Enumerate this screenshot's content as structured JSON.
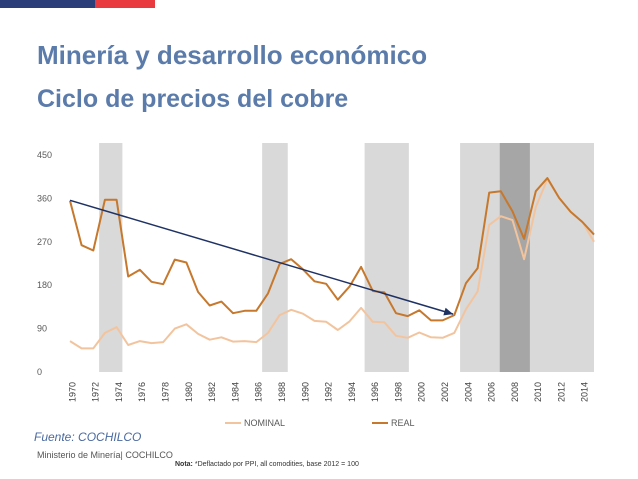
{
  "header": {
    "title": "Minería y desarrollo económico",
    "subtitle": "Ciclo de precios del cobre"
  },
  "footer": {
    "source": "Fuente: COCHILCO",
    "org": "Ministerio de Minería| COCHILCO",
    "note_label": "Nota:",
    "note_text": "*Deflactado por PPI, all comodities, base 2012 = 100"
  },
  "colors": {
    "flag_blue": "#2a3f7a",
    "flag_red": "#e83a3f",
    "nominal": "#f2c49e",
    "real": "#c6782d",
    "trend_arrow": "#1f3264",
    "band": "#d9d9d9",
    "band_dark": "#a6a6a6"
  },
  "chart_data": {
    "type": "line",
    "x": [
      1970,
      1971,
      1972,
      1973,
      1974,
      1975,
      1976,
      1977,
      1978,
      1979,
      1980,
      1981,
      1982,
      1983,
      1984,
      1985,
      1986,
      1987,
      1988,
      1989,
      1990,
      1991,
      1992,
      1993,
      1994,
      1995,
      1996,
      1997,
      1998,
      1999,
      2000,
      2001,
      2002,
      2003,
      2004,
      2005,
      2006,
      2007,
      2008,
      2009,
      2010,
      2011,
      2012,
      2013,
      2014,
      2015
    ],
    "x_ticks": [
      1970,
      1972,
      1974,
      1976,
      1978,
      1980,
      1982,
      1984,
      1986,
      1988,
      1990,
      1992,
      1994,
      1996,
      1998,
      2000,
      2002,
      2004,
      2006,
      2008,
      2010,
      2012,
      2014
    ],
    "y_ticks": [
      0,
      90,
      180,
      270,
      360,
      450
    ],
    "ylim": [
      0,
      450
    ],
    "series": [
      {
        "name": "NOMINAL",
        "values": [
          64,
          49,
          49,
          81,
          93,
          56,
          64,
          60,
          62,
          90,
          99,
          79,
          67,
          72,
          63,
          64,
          62,
          81,
          118,
          129,
          121,
          106,
          104,
          87,
          105,
          133,
          104,
          103,
          75,
          71,
          82,
          72,
          71,
          81,
          130,
          167,
          305,
          323,
          315,
          234,
          342,
          400,
          361,
          332,
          311,
          270
        ]
      },
      {
        "name": "REAL",
        "values": [
          355,
          263,
          252,
          357,
          357,
          198,
          212,
          187,
          182,
          233,
          227,
          166,
          138,
          146,
          122,
          127,
          127,
          163,
          224,
          234,
          213,
          188,
          183,
          150,
          177,
          218,
          168,
          165,
          122,
          116,
          128,
          107,
          107,
          118,
          184,
          215,
          372,
          375,
          333,
          276,
          375,
          402,
          361,
          332,
          311,
          285
        ]
      }
    ],
    "shaded_periods": [
      {
        "start": 1972.5,
        "end": 1974.5,
        "tone": "light"
      },
      {
        "start": 1986.5,
        "end": 1988.7,
        "tone": "light"
      },
      {
        "start": 1995.3,
        "end": 1999.1,
        "tone": "light"
      },
      {
        "start": 2003.5,
        "end": 2006.9,
        "tone": "light"
      },
      {
        "start": 2006.9,
        "end": 2009.5,
        "tone": "dark"
      },
      {
        "start": 2009.5,
        "end": 2015,
        "tone": "light"
      }
    ],
    "trend_arrow": {
      "x": [
        1970,
        2002.9
      ],
      "y": [
        356,
        120
      ]
    },
    "legend_position": "bottom",
    "grid": false
  }
}
